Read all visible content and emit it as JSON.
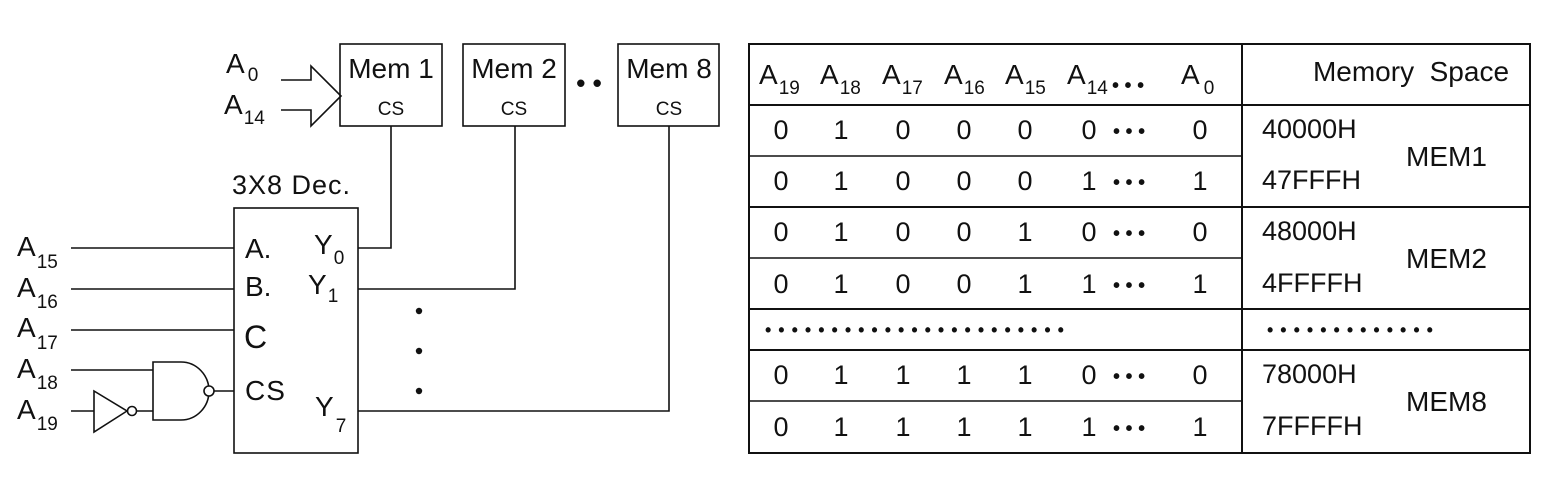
{
  "diagram": {
    "memory_blocks": [
      {
        "name": "Mem 1",
        "cs": "CS"
      },
      {
        "name": "Mem 2",
        "cs": "CS"
      },
      {
        "name": "Mem 8",
        "cs": "CS"
      }
    ],
    "between_blocks_dots": "• •",
    "address_bus": {
      "from": {
        "base": "A",
        "sub": "0"
      },
      "to": {
        "base": "A",
        "sub": "14"
      }
    },
    "decoder": {
      "title": "3X8 Dec.",
      "inputs": [
        "A.",
        "B.",
        "C",
        "CS"
      ],
      "outputs": [
        {
          "base": "Y",
          "sub": "0"
        },
        {
          "base": "Y",
          "sub": "1"
        },
        {
          "base": "Y",
          "sub": "7"
        }
      ]
    },
    "input_lines": [
      {
        "base": "A",
        "sub": "15"
      },
      {
        "base": "A",
        "sub": "16"
      },
      {
        "base": "A",
        "sub": "17"
      },
      {
        "base": "A",
        "sub": "18"
      },
      {
        "base": "A",
        "sub": "19"
      }
    ]
  },
  "table": {
    "headers": [
      {
        "base": "A",
        "sub": "19"
      },
      {
        "base": "A",
        "sub": "18"
      },
      {
        "base": "A",
        "sub": "17"
      },
      {
        "base": "A",
        "sub": "16"
      },
      {
        "base": "A",
        "sub": "15"
      },
      {
        "base": "A",
        "sub": "14"
      },
      {
        "base": "A",
        "sub": "0"
      }
    ],
    "header_dots": "• • •",
    "space_header": "Memory  Space",
    "row_dots": "• • •",
    "rows": [
      {
        "bits": [
          "0",
          "1",
          "0",
          "0",
          "0",
          "0",
          "0"
        ],
        "address": "40000H"
      },
      {
        "bits": [
          "0",
          "1",
          "0",
          "0",
          "0",
          "1",
          "1"
        ],
        "address": "47FFFH"
      },
      {
        "bits": [
          "0",
          "1",
          "0",
          "0",
          "1",
          "0",
          "0"
        ],
        "address": "48000H"
      },
      {
        "bits": [
          "0",
          "1",
          "0",
          "0",
          "1",
          "1",
          "1"
        ],
        "address": "4FFFFH"
      },
      {
        "bits": [
          "0",
          "1",
          "1",
          "1",
          "1",
          "0",
          "0"
        ],
        "address": "78000H"
      },
      {
        "bits": [
          "0",
          "1",
          "1",
          "1",
          "1",
          "1",
          "1"
        ],
        "address": "7FFFFH"
      }
    ],
    "groups": [
      "MEM1",
      "MEM2",
      "MEM8"
    ],
    "ellipsis_left": "• • • • • • • • • • • • • • • • • • • • • • •",
    "ellipsis_right": "• • • • • • • • • • • • •"
  }
}
